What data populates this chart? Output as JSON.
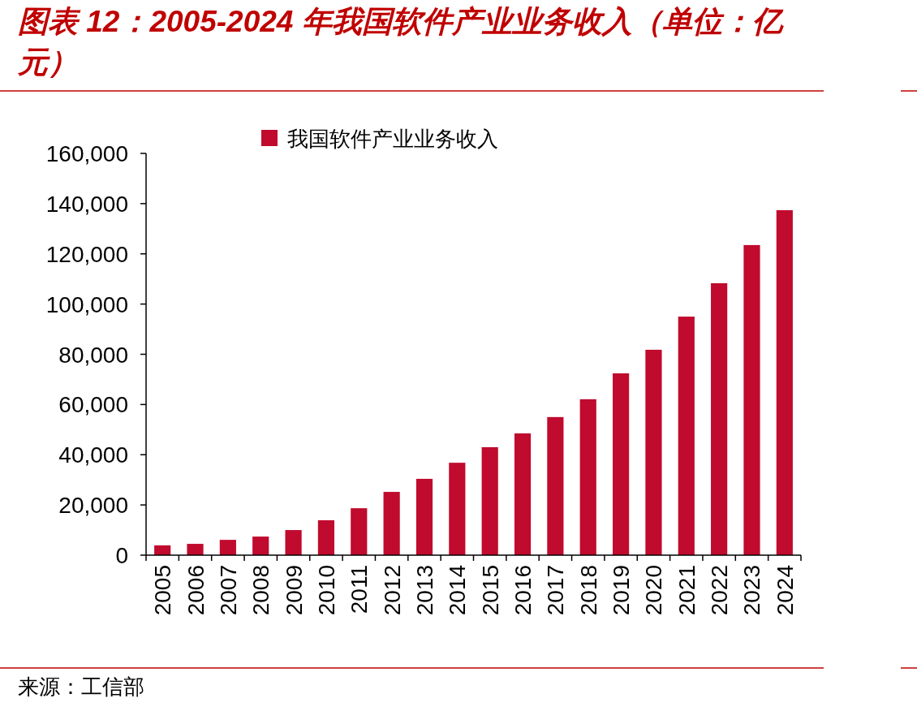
{
  "chart_data": {
    "type": "bar",
    "title": "图表 12：2005-2024 年我国软件产业业务收入（单位：亿元）",
    "categories": [
      "2005",
      "2006",
      "2007",
      "2008",
      "2009",
      "2010",
      "2011",
      "2012",
      "2013",
      "2014",
      "2015",
      "2016",
      "2017",
      "2018",
      "2019",
      "2020",
      "2021",
      "2022",
      "2023",
      "2024"
    ],
    "series": [
      {
        "name": "我国软件产业业务收入",
        "color": "#c00a2e",
        "values": [
          3900,
          4500,
          6100,
          7400,
          10000,
          13900,
          18700,
          25200,
          30400,
          36800,
          43000,
          48500,
          55000,
          62100,
          72400,
          81800,
          95000,
          108300,
          123500,
          137400
        ]
      }
    ],
    "ylim": [
      0,
      160000
    ],
    "yticks": [
      {
        "value": 0,
        "label": "0"
      },
      {
        "value": 20000,
        "label": "20,000"
      },
      {
        "value": 40000,
        "label": "40,000"
      },
      {
        "value": 60000,
        "label": "60,000"
      },
      {
        "value": 80000,
        "label": "80,000"
      },
      {
        "value": 100000,
        "label": "100,000"
      },
      {
        "value": 120000,
        "label": "120,000"
      },
      {
        "value": 140000,
        "label": "140,000"
      },
      {
        "value": 160000,
        "label": "160,000"
      }
    ],
    "legend": "top",
    "grid": false,
    "annotations": [
      "来源：工信部"
    ]
  }
}
